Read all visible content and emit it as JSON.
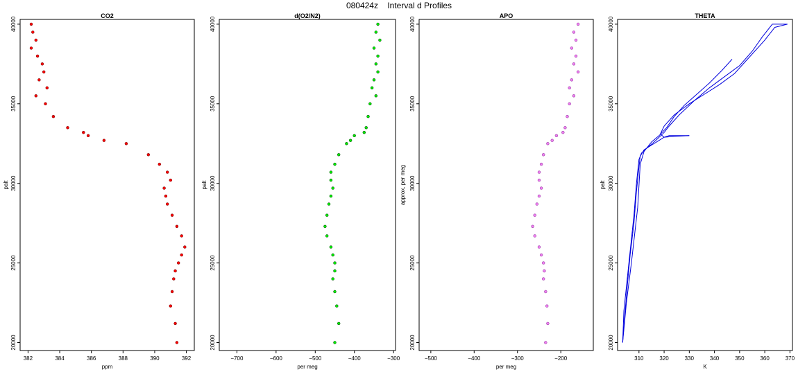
{
  "figure": {
    "code": "080424z",
    "title": "Interval d Profiles"
  },
  "chart_data": [
    {
      "type": "scatter",
      "title": "CO2",
      "xlabel": "ppm",
      "ylabel": "palt",
      "xlim": [
        381.5,
        392.5
      ],
      "ylim": [
        19500,
        40300
      ],
      "xticks": [
        382,
        384,
        386,
        388,
        390,
        392
      ],
      "yticks": [
        20000,
        25000,
        30000,
        35000,
        40000
      ],
      "color": "#ff0000",
      "outline_color": "#7a0000",
      "series": [
        {
          "x": [
            382.2,
            382.3,
            382.5,
            382.2,
            382.6,
            382.9,
            383.0,
            382.7,
            383.2,
            382.5,
            383.1,
            383.6,
            384.5,
            385.5,
            385.8,
            386.8,
            388.2,
            389.6,
            390.3,
            390.8,
            391.0,
            390.6,
            390.7,
            390.8,
            391.1,
            391.4,
            391.7,
            391.9,
            391.7,
            391.5,
            391.3,
            391.2,
            391.1,
            391.0,
            391.3,
            391.4
          ],
          "y": [
            40000,
            39500,
            39000,
            38500,
            38000,
            37500,
            37000,
            36500,
            36000,
            35500,
            35000,
            34200,
            33500,
            33200,
            33000,
            32700,
            32500,
            31800,
            31200,
            30700,
            30200,
            29700,
            29200,
            28700,
            28000,
            27300,
            26700,
            26000,
            25500,
            25000,
            24500,
            24000,
            23200,
            22300,
            21200,
            20000
          ]
        }
      ]
    },
    {
      "type": "scatter",
      "title": "d(O2/N2)",
      "xlabel": "per meg",
      "ylabel": "palt",
      "xlim": [
        -745,
        -295
      ],
      "ylim": [
        19500,
        40300
      ],
      "xticks": [
        -700,
        -600,
        -500,
        -400,
        -300
      ],
      "yticks": [
        20000,
        25000,
        30000,
        35000,
        40000
      ],
      "color": "#00ee00",
      "outline_color": "#005500",
      "series": [
        {
          "x": [
            -340,
            -345,
            -335,
            -350,
            -340,
            -345,
            -340,
            -350,
            -355,
            -345,
            -360,
            -365,
            -370,
            -375,
            -400,
            -410,
            -420,
            -440,
            -450,
            -460,
            -460,
            -455,
            -460,
            -465,
            -470,
            -475,
            -470,
            -460,
            -455,
            -450,
            -450,
            -455,
            -450,
            -445,
            -440,
            -450
          ],
          "y": [
            40000,
            39500,
            39000,
            38500,
            38000,
            37500,
            37000,
            36500,
            36000,
            35500,
            35000,
            34200,
            33500,
            33200,
            33000,
            32700,
            32500,
            31800,
            31200,
            30700,
            30200,
            29700,
            29200,
            28700,
            28000,
            27300,
            26700,
            26000,
            25500,
            25000,
            24500,
            24000,
            23200,
            22300,
            21200,
            20000
          ]
        }
      ]
    },
    {
      "type": "scatter",
      "title": "APO",
      "xlabel": "per meg",
      "ylabel": "approx. per meg",
      "xlim": [
        -527,
        -125
      ],
      "ylim": [
        19500,
        40300
      ],
      "xticks": [
        -500,
        -400,
        -300,
        -200
      ],
      "yticks": [
        20000,
        25000,
        30000,
        35000,
        40000
      ],
      "color": "#ee82ee",
      "outline_color": "#9a3aa8",
      "series": [
        {
          "x": [
            -160,
            -170,
            -165,
            -175,
            -165,
            -170,
            -160,
            -175,
            -180,
            -170,
            -180,
            -185,
            -190,
            -195,
            -210,
            -220,
            -230,
            -240,
            -245,
            -250,
            -250,
            -245,
            -250,
            -255,
            -260,
            -265,
            -260,
            -250,
            -245,
            -240,
            -238,
            -240,
            -235,
            -232,
            -230,
            -235
          ],
          "y": [
            40000,
            39500,
            39000,
            38500,
            38000,
            37500,
            37000,
            36500,
            36000,
            35500,
            35000,
            34200,
            33500,
            33200,
            33000,
            32700,
            32500,
            31800,
            31200,
            30700,
            30200,
            29700,
            29200,
            28700,
            28000,
            27300,
            26700,
            26000,
            25500,
            25000,
            24500,
            24000,
            23200,
            22300,
            21200,
            20000
          ]
        }
      ]
    },
    {
      "type": "line",
      "title": "THETA",
      "xlabel": "K",
      "ylabel": "palt",
      "xlim": [
        301.5,
        371
      ],
      "ylim": [
        19500,
        40300
      ],
      "xticks": [
        310,
        320,
        330,
        340,
        350,
        360,
        370
      ],
      "yticks": [
        20000,
        25000,
        30000,
        35000,
        40000
      ],
      "color": "#0000dd",
      "series": [
        {
          "x": [
            303.5,
            304.5,
            305.5,
            306.5,
            308.0,
            309.0,
            310.0,
            310.5,
            312.0,
            315.0,
            318.0,
            320.0,
            322.0,
            326.0,
            330.0
          ],
          "y": [
            20000,
            22000,
            23800,
            25500,
            27500,
            29500,
            31000,
            31700,
            32100,
            32400,
            32700,
            32900,
            33000,
            33000,
            33000
          ]
        },
        {
          "x": [
            330.0,
            324.0,
            320.0,
            318.5,
            320.0,
            324.0,
            330.0,
            336.0,
            342.0,
            348.0,
            352.0,
            356.0,
            360.0,
            364.0,
            369.0
          ],
          "y": [
            33000,
            32950,
            32900,
            33100,
            33600,
            34300,
            35000,
            35600,
            36200,
            36900,
            37600,
            38300,
            39000,
            39800,
            40000
          ]
        },
        {
          "x": [
            369.0,
            363.0,
            359.0,
            355.0,
            350.0,
            344.0,
            338.0,
            332.0,
            326.0,
            322.0,
            320.0,
            318.0,
            316.0,
            313.0,
            311.0,
            310.0,
            309.0,
            308.0,
            306.0,
            304.0,
            303.5
          ],
          "y": [
            40000,
            40000,
            39200,
            38300,
            37400,
            36700,
            36000,
            35200,
            34300,
            33600,
            33200,
            32900,
            32600,
            32200,
            31900,
            31500,
            30000,
            28000,
            25000,
            22000,
            20000
          ]
        },
        {
          "x": [
            303.5,
            305.0,
            307.0,
            309.5,
            310.5,
            312.0,
            315.0,
            318.0,
            321.0,
            324.0,
            328.0,
            333.0,
            338.0,
            343.0,
            347.0
          ],
          "y": [
            20000,
            22500,
            25000,
            28500,
            31200,
            32000,
            32600,
            33000,
            33500,
            34200,
            34900,
            35600,
            36300,
            37100,
            37800
          ]
        }
      ]
    }
  ]
}
